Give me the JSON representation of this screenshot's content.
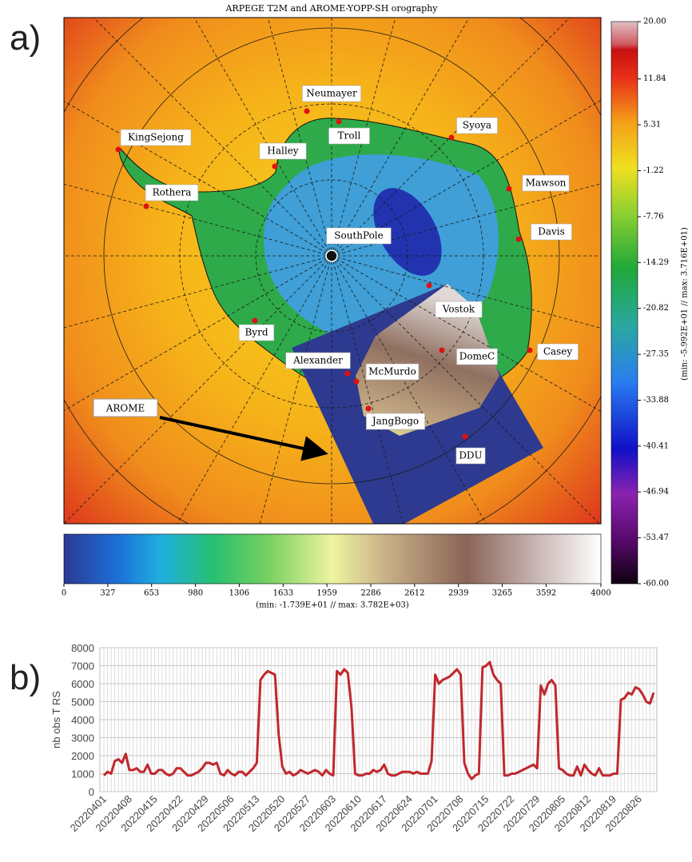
{
  "panel_a": {
    "label": "a)",
    "title": "ARPEGE T2M and AROME-YOPP-SH orography",
    "stations": [
      "Neumayer",
      "Troll",
      "KingSejong",
      "Halley",
      "Syoya",
      "Rothera",
      "Mawson",
      "Davis",
      "SouthPole",
      "Vostok",
      "Byrd",
      "Alexander",
      "McMurdo",
      "DomeC",
      "Casey",
      "JangBogo",
      "DDU"
    ],
    "arrow_label": "AROME",
    "temperature_colorbar": {
      "lim": [
        -60,
        20
      ],
      "ticks": [
        {
          "value": 20,
          "label": "20.00"
        },
        11.84,
        5.31,
        -1.22,
        -7.76,
        -14.29,
        -20.82,
        -27.35,
        -33.88,
        -40.41,
        -46.94,
        -53.47,
        {
          "value": -60,
          "label": "-60.00"
        }
      ],
      "note": "(min: -5.992E+01 // max: 3.716E+01)"
    },
    "orography_colorbar": {
      "lim": [
        0,
        4000
      ],
      "ticks": [
        0,
        327,
        653,
        980,
        1306,
        1633,
        1959,
        2286,
        2612,
        2939,
        3265,
        3592,
        4000
      ],
      "note": "(min: -1.739E+01 // max:  3.782E+03)"
    }
  },
  "chart_data": {
    "type": "line",
    "panel_label": "b)",
    "ylabel": "nb obs T RS",
    "categories": [
      "20220401",
      null,
      null,
      null,
      null,
      null,
      null,
      "20220408",
      null,
      null,
      null,
      null,
      null,
      null,
      "20220415",
      null,
      null,
      null,
      null,
      null,
      null,
      "20220422",
      null,
      null,
      null,
      null,
      null,
      null,
      "20220429",
      null,
      null,
      null,
      null,
      null,
      null,
      "20220506",
      null,
      null,
      null,
      null,
      null,
      null,
      "20220513",
      null,
      null,
      null,
      null,
      null,
      null,
      "20220520",
      null,
      null,
      null,
      null,
      null,
      null,
      "20220527",
      null,
      null,
      null,
      null,
      null,
      null,
      "20220603",
      null,
      null,
      null,
      null,
      null,
      null,
      "20220610",
      null,
      null,
      null,
      null,
      null,
      null,
      "20220617",
      null,
      null,
      null,
      null,
      null,
      null,
      "20220624",
      null,
      null,
      null,
      null,
      null,
      null,
      "20220701",
      null,
      null,
      null,
      null,
      null,
      null,
      "20220708",
      null,
      null,
      null,
      null,
      null,
      null,
      "20220715",
      null,
      null,
      null,
      null,
      null,
      null,
      "20220722",
      null,
      null,
      null,
      null,
      null,
      null,
      "20220729",
      null,
      null,
      null,
      null,
      null,
      null,
      "20220805",
      null,
      null,
      null,
      null,
      null,
      null,
      "20220812",
      null,
      null,
      null,
      null,
      null,
      null,
      "20220819",
      null,
      null,
      null,
      null,
      null,
      null,
      "20220826",
      null,
      null,
      null,
      null
    ],
    "values": [
      900,
      1100,
      1000,
      1700,
      1800,
      1600,
      2100,
      1200,
      1200,
      1300,
      1100,
      1100,
      1500,
      1000,
      1000,
      1200,
      1200,
      1000,
      900,
      1000,
      1300,
      1300,
      1100,
      900,
      900,
      1000,
      1100,
      1300,
      1600,
      1600,
      1500,
      1600,
      1000,
      900,
      1200,
      1000,
      900,
      1100,
      1100,
      900,
      1100,
      1300,
      1600,
      6200,
      6500,
      6700,
      6600,
      6500,
      3200,
      1400,
      1000,
      1100,
      900,
      1000,
      1200,
      1100,
      1000,
      1100,
      1200,
      1100,
      900,
      1200,
      1000,
      900,
      6700,
      6500,
      6800,
      6600,
      4700,
      1000,
      900,
      900,
      1000,
      1000,
      1200,
      1100,
      1200,
      1500,
      1000,
      900,
      900,
      1000,
      1100,
      1100,
      1100,
      1000,
      1100,
      1000,
      1000,
      1000,
      1700,
      6500,
      6000,
      6200,
      6300,
      6400,
      6600,
      6800,
      6500,
      1600,
      1000,
      700,
      900,
      1000,
      6900,
      7000,
      7200,
      6500,
      6200,
      6000,
      900,
      900,
      1000,
      1000,
      1100,
      1200,
      1300,
      1400,
      1500,
      1300,
      5900,
      5400,
      6000,
      6200,
      5900,
      1300,
      1200,
      1000,
      900,
      900,
      1400,
      900,
      1500,
      1200,
      1000,
      900,
      1300,
      900,
      900,
      900,
      1000,
      1000,
      5100,
      5200,
      5500,
      5400,
      5800,
      5700,
      5400,
      5000,
      4900,
      5500
    ],
    "color": "#c0282d",
    "ylim": [
      0,
      8000
    ],
    "yticks": [
      0,
      1000,
      2000,
      3000,
      4000,
      5000,
      6000,
      7000,
      8000
    ],
    "grid": true
  }
}
